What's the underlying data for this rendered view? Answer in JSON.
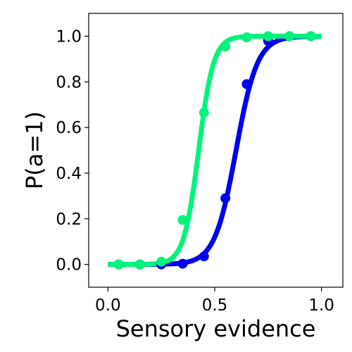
{
  "chart_data": {
    "type": "line",
    "title": "",
    "xlabel": "Sensory evidence",
    "ylabel": "P(a=1)",
    "xlim": [
      -0.09,
      1.1
    ],
    "ylim": [
      -0.1,
      1.1
    ],
    "xticks": [
      0.0,
      0.5,
      1.0
    ],
    "xtick_labels": [
      "0.0",
      "0.5",
      "1.0"
    ],
    "yticks": [
      0.0,
      0.2,
      0.4,
      0.6,
      0.8,
      1.0
    ],
    "ytick_labels": [
      "0.0",
      "0.2",
      "0.4",
      "0.6",
      "0.8",
      "1.0"
    ],
    "grid": false,
    "legend": "none",
    "series": [
      {
        "color": "#0000ee",
        "curve": {
          "midpoint": 0.6,
          "slope": 0.05,
          "x_range": [
            0.0,
            1.0
          ]
        },
        "points": {
          "x": [
            0.05,
            0.15,
            0.25,
            0.35,
            0.45,
            0.55,
            0.65,
            0.75,
            0.85,
            0.95
          ],
          "y": [
            0.0,
            0.0,
            0.0,
            0.003,
            0.035,
            0.29,
            0.79,
            0.98,
            1.0,
            1.0
          ]
        }
      },
      {
        "color": "#00f47c",
        "curve": {
          "midpoint": 0.425,
          "slope": 0.035,
          "x_range": [
            0.0,
            1.0
          ]
        },
        "points": {
          "x": [
            0.05,
            0.15,
            0.25,
            0.35,
            0.45,
            0.55,
            0.65,
            0.75,
            0.85,
            0.95
          ],
          "y": [
            0.0,
            0.0,
            0.012,
            0.195,
            0.665,
            0.955,
            0.995,
            1.0,
            1.0,
            1.0
          ]
        }
      }
    ]
  }
}
